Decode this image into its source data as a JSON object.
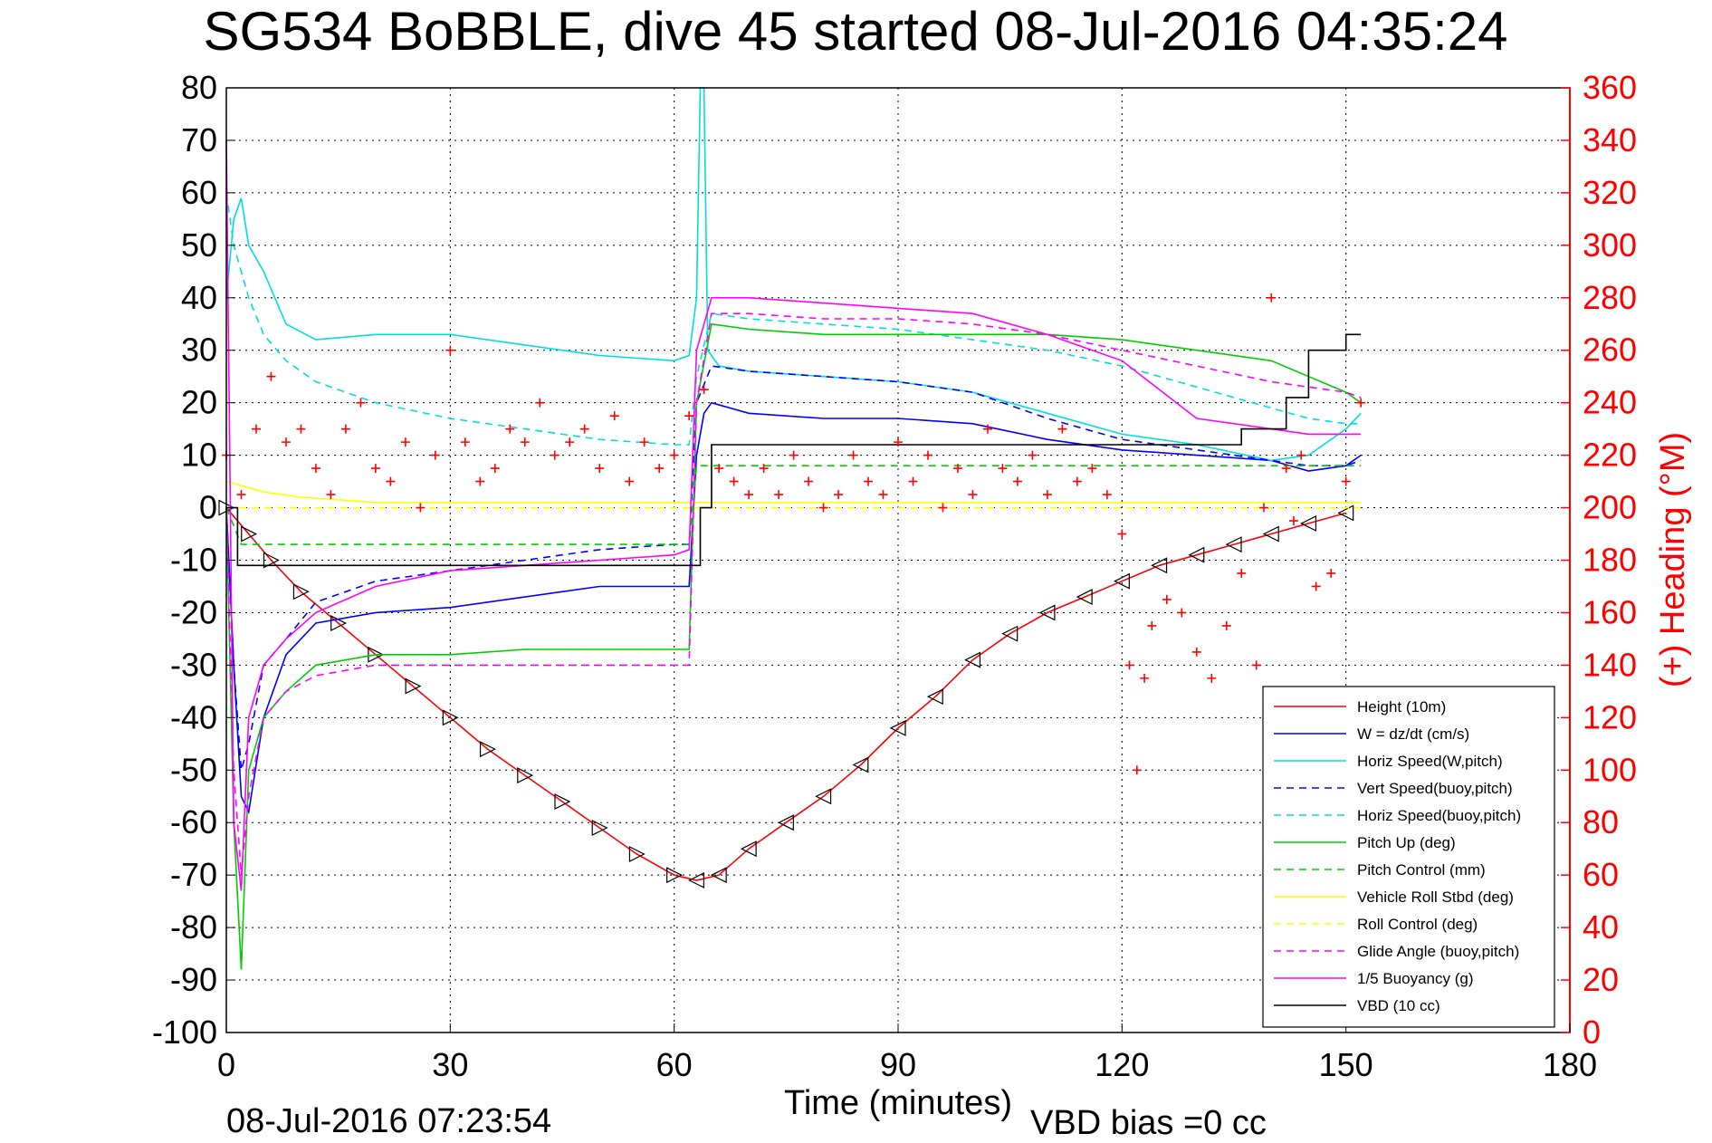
{
  "chart_data": {
    "type": "line",
    "title": "SG534 BoBBLE, dive 45 started 08-Jul-2016 04:35:24",
    "xlabel": "Time (minutes)",
    "ylabel_right": "(+) Heading (°M)",
    "xlim": [
      0,
      180
    ],
    "ylim_left": [
      -100,
      80
    ],
    "ylim_right": [
      0,
      360
    ],
    "x_ticks": [
      "0",
      "30",
      "60",
      "90",
      "120",
      "150",
      "180"
    ],
    "y_ticks_left": [
      "80",
      "70",
      "60",
      "50",
      "40",
      "30",
      "20",
      "10",
      "0",
      "-10",
      "-20",
      "-30",
      "-40",
      "-50",
      "-60",
      "-70",
      "-80",
      "-90",
      "-100"
    ],
    "y_ticks_right": [
      "360",
      "340",
      "320",
      "300",
      "280",
      "260",
      "240",
      "220",
      "200",
      "180",
      "160",
      "140",
      "120",
      "100",
      "80",
      "60",
      "40",
      "20",
      "0"
    ],
    "grid": true,
    "legend_position": "bottom-right",
    "footer_time": "08-Jul-2016 07:23:54",
    "footer_vbd": "VBD bias =0 cc",
    "series": [
      {
        "name": "Height (10m)",
        "color": "#ff0000",
        "dash": "solid",
        "marker": "triangle",
        "axis": "left",
        "x": [
          0,
          3,
          6,
          10,
          15,
          20,
          25,
          30,
          35,
          40,
          45,
          50,
          55,
          60,
          63,
          66,
          70,
          75,
          80,
          85,
          90,
          95,
          100,
          105,
          110,
          115,
          120,
          125,
          130,
          135,
          140,
          145,
          150
        ],
        "y": [
          0,
          -5,
          -10,
          -16,
          -22,
          -28,
          -34,
          -40,
          -46,
          -51,
          -56,
          -61,
          -66,
          -70,
          -71,
          -70,
          -65,
          -60,
          -55,
          -49,
          -42,
          -36,
          -29,
          -24,
          -20,
          -17,
          -14,
          -11,
          -9,
          -7,
          -5,
          -3,
          -1
        ]
      },
      {
        "name": "W = dz/dt (cm/s)",
        "color": "#0000ff",
        "dash": "solid",
        "axis": "left",
        "x": [
          0,
          1,
          2,
          3,
          5,
          8,
          12,
          20,
          30,
          40,
          50,
          60,
          62,
          63,
          64,
          65,
          70,
          80,
          90,
          100,
          110,
          120,
          130,
          140,
          145,
          150,
          152
        ],
        "y": [
          0,
          -30,
          -55,
          -58,
          -40,
          -28,
          -22,
          -20,
          -19,
          -17,
          -15,
          -15,
          -15,
          10,
          18,
          20,
          18,
          17,
          17,
          16,
          13,
          11,
          10,
          9,
          7,
          8,
          10
        ]
      },
      {
        "name": "Horiz Speed(W,pitch)",
        "color": "#00dddd",
        "dash": "solid",
        "axis": "left",
        "x": [
          0,
          1,
          2,
          3,
          5,
          8,
          12,
          20,
          30,
          40,
          50,
          60,
          62,
          63,
          63.5,
          64,
          64.5,
          66,
          70,
          80,
          90,
          100,
          110,
          120,
          130,
          140,
          145,
          150,
          152
        ],
        "y": [
          40,
          55,
          59,
          50,
          45,
          35,
          32,
          33,
          33,
          31,
          29,
          28,
          29,
          40,
          80,
          80,
          30,
          27,
          26,
          25,
          24,
          22,
          18,
          14,
          12,
          9,
          10,
          15,
          18
        ]
      },
      {
        "name": "Vert Speed(buoy,pitch)",
        "color": "#0000ff",
        "dash": "dashed",
        "axis": "left",
        "x": [
          0,
          1,
          2,
          3,
          5,
          8,
          12,
          20,
          30,
          40,
          50,
          60,
          62,
          63,
          65,
          70,
          80,
          90,
          100,
          110,
          120,
          130,
          140,
          145,
          150,
          152
        ],
        "y": [
          0,
          -30,
          -50,
          -45,
          -30,
          -25,
          -18,
          -14,
          -12,
          -10,
          -8,
          -7,
          -7,
          20,
          27,
          26,
          25,
          24,
          22,
          17,
          13,
          11,
          9,
          8,
          8,
          9
        ]
      },
      {
        "name": "Horiz Speed(buoy,pitch)",
        "color": "#00dddd",
        "dash": "dashed",
        "axis": "left",
        "x": [
          0,
          1,
          3,
          5,
          8,
          12,
          20,
          30,
          40,
          50,
          60,
          62,
          63,
          65,
          70,
          80,
          90,
          100,
          110,
          120,
          130,
          140,
          145,
          150,
          152
        ],
        "y": [
          60,
          50,
          40,
          33,
          28,
          24,
          20,
          17,
          15,
          13,
          12,
          12,
          25,
          37,
          36,
          35,
          34,
          32,
          30,
          27,
          23,
          19,
          17,
          16,
          16
        ]
      },
      {
        "name": "Pitch Up (deg)",
        "color": "#00cc00",
        "dash": "solid",
        "axis": "left",
        "x": [
          0,
          1,
          2,
          3,
          5,
          8,
          12,
          20,
          30,
          40,
          50,
          60,
          62,
          63,
          65,
          70,
          80,
          90,
          100,
          110,
          120,
          130,
          140,
          145,
          150,
          152
        ],
        "y": [
          0,
          -60,
          -88,
          -50,
          -40,
          -35,
          -30,
          -28,
          -28,
          -27,
          -27,
          -27,
          -27,
          20,
          35,
          34,
          33,
          33,
          33,
          33,
          32,
          30,
          28,
          25,
          22,
          20
        ]
      },
      {
        "name": "Pitch Control (mm)",
        "color": "#00cc00",
        "dash": "dashed",
        "axis": "left",
        "x": [
          0,
          2,
          5,
          10,
          20,
          30,
          40,
          50,
          60,
          62,
          63,
          65,
          70,
          80,
          90,
          100,
          110,
          120,
          130,
          140,
          145,
          150,
          152
        ],
        "y": [
          0,
          -7,
          -7,
          -7,
          -7,
          -7,
          -7,
          -7,
          -7,
          -7,
          8,
          8,
          8,
          8,
          8,
          8,
          8,
          8,
          8,
          8,
          8,
          8,
          8
        ]
      },
      {
        "name": "Vehicle Roll Stbd (deg)",
        "color": "#ffff00",
        "dash": "solid",
        "axis": "left",
        "x": [
          0,
          5,
          10,
          20,
          30,
          40,
          50,
          60,
          65,
          70,
          80,
          90,
          100,
          110,
          120,
          130,
          140,
          150,
          152
        ],
        "y": [
          5,
          3,
          2,
          1,
          1,
          1,
          1,
          1,
          1,
          1,
          1,
          1,
          1,
          1,
          1,
          1,
          1,
          1,
          1
        ]
      },
      {
        "name": "Roll Control (deg)",
        "color": "#ffff00",
        "dash": "dashed",
        "axis": "left",
        "x": [
          0,
          5,
          10,
          20,
          30,
          40,
          50,
          60,
          65,
          70,
          80,
          90,
          100,
          110,
          120,
          130,
          140,
          150,
          152
        ],
        "y": [
          0,
          0,
          0,
          0,
          0,
          0,
          0,
          0,
          0,
          0,
          0,
          0,
          0,
          0,
          0,
          0,
          0,
          0,
          0
        ]
      },
      {
        "name": "Glide Angle (buoy,pitch)",
        "color": "#ff00ff",
        "dash": "dashed",
        "axis": "left",
        "x": [
          0,
          1,
          2,
          3,
          5,
          8,
          12,
          20,
          30,
          40,
          50,
          60,
          62,
          63,
          65,
          70,
          80,
          90,
          100,
          110,
          120,
          130,
          140,
          145,
          150,
          152
        ],
        "y": [
          0,
          -50,
          -70,
          -55,
          -40,
          -35,
          -32,
          -30,
          -30,
          -30,
          -30,
          -30,
          -30,
          20,
          37,
          37,
          36,
          36,
          35,
          33,
          30,
          27,
          24,
          23,
          22,
          21
        ]
      },
      {
        "name": "1/5 Buoyancy (g)",
        "color": "#ff00ff",
        "dash": "solid",
        "axis": "left",
        "x": [
          0,
          1,
          2,
          3,
          5,
          8,
          12,
          20,
          30,
          40,
          50,
          60,
          62,
          63,
          65,
          70,
          80,
          90,
          100,
          110,
          120,
          130,
          140,
          145,
          150,
          152
        ],
        "y": [
          70,
          -60,
          -73,
          -40,
          -30,
          -25,
          -20,
          -15,
          -12,
          -11,
          -10,
          -9,
          -8,
          30,
          40,
          40,
          39,
          38,
          37,
          33,
          28,
          17,
          15,
          14,
          14,
          14
        ]
      },
      {
        "name": "VBD (10 cc)",
        "color": "#000000",
        "dash": "solid",
        "axis": "left",
        "step": true,
        "x": [
          0,
          1.5,
          62,
          63.5,
          65,
          110,
          130,
          136,
          142,
          145,
          150,
          152
        ],
        "y": [
          0,
          -11,
          -11,
          0,
          12,
          12,
          12,
          15,
          21,
          30,
          33,
          33
        ]
      },
      {
        "name": "Heading",
        "color": "#ff0000",
        "dash": "none",
        "marker": "plus",
        "axis": "right",
        "x": [
          0,
          2,
          4,
          6,
          8,
          10,
          12,
          14,
          16,
          18,
          20,
          22,
          24,
          26,
          28,
          30,
          32,
          34,
          36,
          38,
          40,
          42,
          44,
          46,
          48,
          50,
          52,
          54,
          56,
          58,
          60,
          62,
          64,
          66,
          68,
          70,
          72,
          74,
          76,
          78,
          80,
          82,
          84,
          86,
          88,
          90,
          92,
          94,
          96,
          98,
          100,
          102,
          104,
          106,
          108,
          110,
          112,
          114,
          116,
          118,
          120,
          121,
          122,
          123,
          124,
          126,
          128,
          130,
          132,
          134,
          136,
          138,
          139,
          140,
          142,
          143,
          144,
          146,
          148,
          150,
          152
        ],
        "y": [
          220,
          205,
          230,
          250,
          225,
          230,
          215,
          205,
          230,
          240,
          215,
          210,
          225,
          200,
          220,
          260,
          225,
          210,
          215,
          230,
          225,
          240,
          220,
          225,
          230,
          215,
          235,
          210,
          225,
          215,
          220,
          235,
          245,
          215,
          210,
          205,
          215,
          205,
          220,
          210,
          200,
          205,
          220,
          210,
          205,
          225,
          210,
          220,
          200,
          215,
          205,
          230,
          215,
          210,
          220,
          205,
          230,
          210,
          215,
          205,
          190,
          140,
          100,
          135,
          155,
          165,
          160,
          145,
          135,
          155,
          175,
          140,
          200,
          280,
          215,
          195,
          220,
          170,
          175,
          210,
          240
        ]
      }
    ]
  }
}
